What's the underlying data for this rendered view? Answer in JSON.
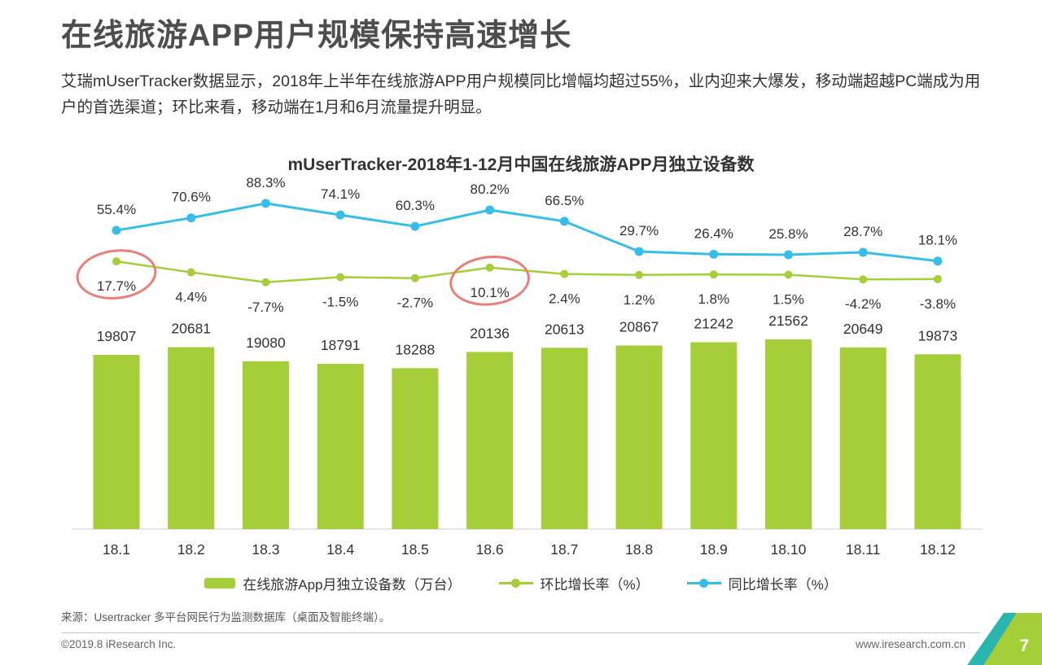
{
  "page": {
    "title": "在线旅游APP用户规模保持高速增长",
    "description": "艾瑞mUserTracker数据显示，2018年上半年在线旅游APP用户规模同比增幅均超过55%，业内迎来大爆发，移动端超越PC端成为用户的首选渠道；环比来看，移动端在1月和6月流量提升明显。",
    "source": "来源：Usertracker 多平台网民行为监测数据库（桌面及智能终端）。",
    "footer": {
      "copyright": "©2019.8 iResearch Inc.",
      "website": "www.iresearch.com.cn",
      "page_number": "7"
    }
  },
  "chart_data": {
    "type": "bar",
    "title": "mUserTracker-2018年1-12月中国在线旅游APP月独立设备数",
    "categories": [
      "18.1",
      "18.2",
      "18.3",
      "18.4",
      "18.5",
      "18.6",
      "18.7",
      "18.8",
      "18.9",
      "18.10",
      "18.11",
      "18.12"
    ],
    "series": [
      {
        "name": "在线旅游App月独立设备数（万台）",
        "type": "bar",
        "color": "#a5ce39",
        "values": [
          19807,
          20681,
          19080,
          18791,
          18288,
          20136,
          20613,
          20867,
          21242,
          21562,
          20649,
          19873
        ]
      },
      {
        "name": "环比增长率（%）",
        "type": "line",
        "color": "#a5ce39",
        "values": [
          17.7,
          4.4,
          -7.7,
          -1.5,
          -2.7,
          10.1,
          2.4,
          1.2,
          1.8,
          1.5,
          -4.2,
          -3.8
        ]
      },
      {
        "name": "同比增长率（%）",
        "type": "line",
        "color": "#36bdea",
        "values": [
          55.4,
          70.6,
          88.3,
          74.1,
          60.3,
          80.2,
          66.5,
          29.7,
          26.4,
          25.8,
          28.7,
          18.1
        ]
      }
    ],
    "xlabel": "",
    "ylabel": "",
    "bar_axis": {
      "min": 0,
      "max": 21562
    },
    "pct_axis_range": [
      -10,
      90
    ],
    "grid": false,
    "legend_position": "bottom",
    "annotations": {
      "highlight_color": "#e8807a",
      "circled_points": [
        {
          "series": "环比增长率（%）",
          "category": "18.1",
          "label": "17.7%"
        },
        {
          "series": "环比增长率（%）",
          "category": "18.6",
          "label": "10.1%"
        }
      ]
    }
  }
}
